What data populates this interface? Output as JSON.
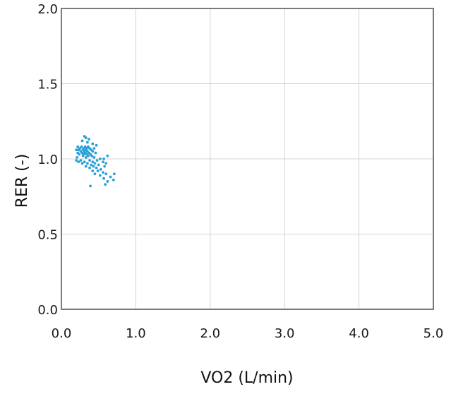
{
  "chart_data": {
    "type": "scatter",
    "xlabel": "VO2 (L/min)",
    "ylabel": "RER (-)",
    "xlim": [
      0,
      5
    ],
    "ylim": [
      0,
      2
    ],
    "xticks": [
      0,
      1,
      2,
      3,
      4,
      5
    ],
    "xtick_labels": [
      "0.0",
      "1.0",
      "2.0",
      "3.0",
      "4.0",
      "5.0"
    ],
    "yticks": [
      0,
      0.5,
      1,
      1.5,
      2
    ],
    "ytick_labels": [
      "0.0",
      "0.5",
      "1.0",
      "1.5",
      "2.0"
    ],
    "grid": true,
    "marker_color": "#2a9fd6",
    "series": [
      {
        "points": [
          [
            0.31,
            1.15
          ],
          [
            0.33,
            1.14
          ],
          [
            0.37,
            1.13
          ],
          [
            0.28,
            1.12
          ],
          [
            0.35,
            1.11
          ],
          [
            0.42,
            1.1
          ],
          [
            0.47,
            1.09
          ],
          [
            0.22,
            1.08
          ],
          [
            0.27,
            1.08
          ],
          [
            0.32,
            1.08
          ],
          [
            0.36,
            1.08
          ],
          [
            0.25,
            1.07
          ],
          [
            0.3,
            1.07
          ],
          [
            0.34,
            1.07
          ],
          [
            0.38,
            1.07
          ],
          [
            0.44,
            1.07
          ],
          [
            0.2,
            1.06
          ],
          [
            0.23,
            1.06
          ],
          [
            0.29,
            1.06
          ],
          [
            0.33,
            1.06
          ],
          [
            0.4,
            1.06
          ],
          [
            0.26,
            1.05
          ],
          [
            0.31,
            1.05
          ],
          [
            0.35,
            1.05
          ],
          [
            0.42,
            1.05
          ],
          [
            0.22,
            1.04
          ],
          [
            0.28,
            1.04
          ],
          [
            0.32,
            1.04
          ],
          [
            0.37,
            1.04
          ],
          [
            0.46,
            1.04
          ],
          [
            0.24,
            1.03
          ],
          [
            0.3,
            1.03
          ],
          [
            0.34,
            1.03
          ],
          [
            0.39,
            1.03
          ],
          [
            0.29,
            1.02
          ],
          [
            0.36,
            1.02
          ],
          [
            0.41,
            1.02
          ],
          [
            0.62,
            1.02
          ],
          [
            0.21,
            1.01
          ],
          [
            0.33,
            1.01
          ],
          [
            0.44,
            1.01
          ],
          [
            0.52,
            1.0
          ],
          [
            0.57,
            1.0
          ],
          [
            0.2,
            0.99
          ],
          [
            0.26,
            0.99
          ],
          [
            0.38,
            0.99
          ],
          [
            0.48,
            0.99
          ],
          [
            0.23,
            0.98
          ],
          [
            0.31,
            0.98
          ],
          [
            0.42,
            0.98
          ],
          [
            0.56,
            0.98
          ],
          [
            0.28,
            0.97
          ],
          [
            0.35,
            0.97
          ],
          [
            0.45,
            0.97
          ],
          [
            0.6,
            0.97
          ],
          [
            0.4,
            0.96
          ],
          [
            0.5,
            0.96
          ],
          [
            0.33,
            0.95
          ],
          [
            0.43,
            0.95
          ],
          [
            0.58,
            0.95
          ],
          [
            0.38,
            0.94
          ],
          [
            0.47,
            0.94
          ],
          [
            0.53,
            0.93
          ],
          [
            0.42,
            0.92
          ],
          [
            0.49,
            0.92
          ],
          [
            0.56,
            0.91
          ],
          [
            0.45,
            0.9
          ],
          [
            0.6,
            0.9
          ],
          [
            0.71,
            0.9
          ],
          [
            0.52,
            0.89
          ],
          [
            0.66,
            0.88
          ],
          [
            0.57,
            0.87
          ],
          [
            0.7,
            0.86
          ],
          [
            0.62,
            0.85
          ],
          [
            0.59,
            0.83
          ],
          [
            0.39,
            0.82
          ]
        ]
      }
    ]
  }
}
